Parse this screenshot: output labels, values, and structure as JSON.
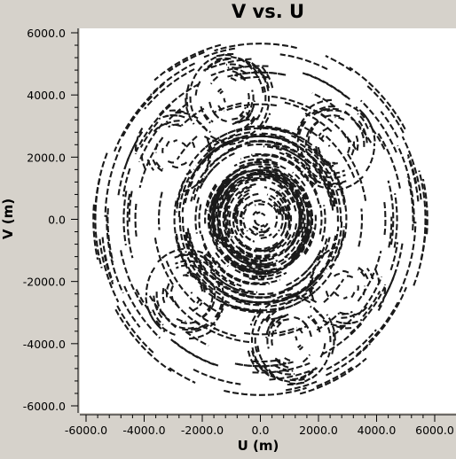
{
  "chart_data": {
    "type": "scatter",
    "title": "V vs. U",
    "xlabel": "U (m)",
    "ylabel": "V (m)",
    "xlim": [
      -6000,
      6000
    ],
    "ylim": [
      -6000,
      6000
    ],
    "xticks": [
      -6000,
      -4000,
      -2000,
      0,
      2000,
      4000,
      6000
    ],
    "yticks": [
      -6000,
      -4000,
      -2000,
      0,
      2000,
      4000,
      6000
    ],
    "xtick_labels": [
      "-6000.0",
      "-4000.0",
      "-2000.0",
      "0.0",
      "2000.0",
      "4000.0",
      "6000.0"
    ],
    "ytick_labels": [
      "-6000.0",
      "-4000.0",
      "-2000.0",
      "0.0",
      "2000.0",
      "4000.0",
      "6000.0"
    ],
    "grid": false,
    "colors": {
      "points": "#1a1a1a",
      "plot_background": "#ffffff",
      "figure_background": "#d6d2cb"
    },
    "series": [
      {
        "description_points": "uv-coverage arcs",
        "arc_groups": [
          {
            "center_u": 0,
            "center_v": 0,
            "rmin": 0,
            "rmax": 3000,
            "count": 110,
            "span_deg": [
              15,
              45
            ]
          },
          {
            "center_u": 0,
            "center_v": 0,
            "rmin": 3000,
            "rmax": 5800,
            "count": 60,
            "span_deg": [
              10,
              30
            ]
          },
          {
            "center_u": -1200,
            "center_v": 3900,
            "rmin": 100,
            "rmax": 1500,
            "count": 26,
            "span_deg": [
              20,
              45
            ]
          },
          {
            "center_u": 2500,
            "center_v": 2400,
            "rmin": 100,
            "rmax": 1500,
            "count": 24,
            "span_deg": [
              20,
              45
            ]
          },
          {
            "center_u": 1000,
            "center_v": -3900,
            "rmin": 100,
            "rmax": 1500,
            "count": 26,
            "span_deg": [
              20,
              45
            ]
          },
          {
            "center_u": -2500,
            "center_v": -2400,
            "rmin": 100,
            "rmax": 1500,
            "count": 24,
            "span_deg": [
              20,
              45
            ]
          },
          {
            "center_u": -3000,
            "center_v": 2200,
            "rmin": 100,
            "rmax": 1400,
            "count": 14,
            "span_deg": [
              20,
              40
            ]
          },
          {
            "center_u": 2800,
            "center_v": -2200,
            "rmin": 100,
            "rmax": 1400,
            "count": 14,
            "span_deg": [
              20,
              40
            ]
          }
        ]
      }
    ]
  }
}
